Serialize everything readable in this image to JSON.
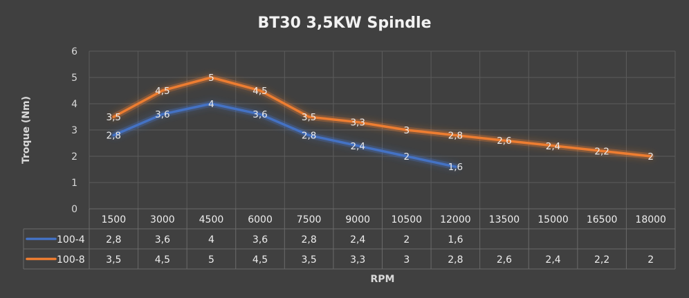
{
  "chart_data": {
    "type": "line",
    "title": "BT30 3,5KW Spindle",
    "xlabel": "RPM",
    "ylabel": "Troque (Nm)",
    "ylim": [
      0,
      6
    ],
    "yticks": [
      "0",
      "1",
      "2",
      "3",
      "4",
      "5",
      "6"
    ],
    "grid": true,
    "legend": "data-table",
    "categories": [
      "1500",
      "3000",
      "4500",
      "6000",
      "7500",
      "9000",
      "10500",
      "12000",
      "13500",
      "15000",
      "16500",
      "18000"
    ],
    "series": [
      {
        "name": "100-4",
        "color": "#4472c4",
        "values": [
          2.8,
          3.6,
          4,
          3.6,
          2.8,
          2.4,
          2,
          1.6,
          null,
          null,
          null,
          null
        ],
        "labels": [
          "2,8",
          "3,6",
          "4",
          "3,6",
          "2,8",
          "2,4",
          "2",
          "1,6",
          "",
          "",
          "",
          ""
        ]
      },
      {
        "name": "100-8",
        "color": "#ed7d31",
        "values": [
          3.5,
          4.5,
          5,
          4.5,
          3.5,
          3.3,
          3,
          2.8,
          2.6,
          2.4,
          2.2,
          2
        ],
        "labels": [
          "3,5",
          "4,5",
          "5",
          "4,5",
          "3,5",
          "3,3",
          "3",
          "2,8",
          "2,6",
          "2,4",
          "2,2",
          "2"
        ]
      }
    ]
  }
}
